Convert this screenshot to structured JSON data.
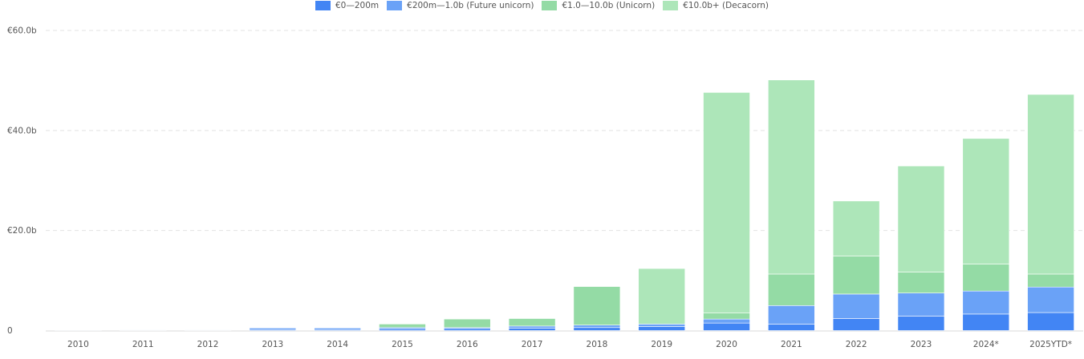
{
  "chart_data": {
    "type": "bar",
    "stacked": true,
    "categories": [
      "2010",
      "2011",
      "2012",
      "2013",
      "2014",
      "2015",
      "2016",
      "2017",
      "2018",
      "2019",
      "2020",
      "2021",
      "2022",
      "2023",
      "2024*",
      "2025YTD*"
    ],
    "series": [
      {
        "name": "€0—200m",
        "color": "#4285f4",
        "values": [
          0.1,
          0.1,
          0.1,
          0.2,
          0.2,
          0.3,
          0.4,
          0.5,
          0.6,
          0.8,
          1.5,
          1.3,
          2.4,
          2.9,
          3.3,
          3.6
        ]
      },
      {
        "name": "€200m—1.0b (Future unicorn)",
        "color": "#6aa2f7",
        "values": [
          0.05,
          0.1,
          0.1,
          0.3,
          0.3,
          0.3,
          0.2,
          0.4,
          0.5,
          0.5,
          0.8,
          3.7,
          4.9,
          4.6,
          4.6,
          5.1
        ]
      },
      {
        "name": "€1.0—10.0b (Unicorn)",
        "color": "#94dba5",
        "values": [
          0,
          0,
          0,
          0,
          0,
          0.7,
          1.7,
          1.5,
          7.7,
          0,
          1.2,
          6.3,
          7.6,
          4.2,
          5.4,
          2.6
        ]
      },
      {
        "name": "€10.0b+ (Decacorn)",
        "color": "#ade6b9",
        "values": [
          0,
          0,
          0,
          0,
          0,
          0,
          0,
          0,
          0,
          11.1,
          44.1,
          38.8,
          11.0,
          21.2,
          25.1,
          35.9
        ]
      }
    ],
    "y_ticks": [
      "0",
      "€20.0b",
      "€40.0b",
      "€60.0b"
    ],
    "ylim": [
      0,
      60
    ],
    "grid": true,
    "legend_position": "top-center"
  }
}
